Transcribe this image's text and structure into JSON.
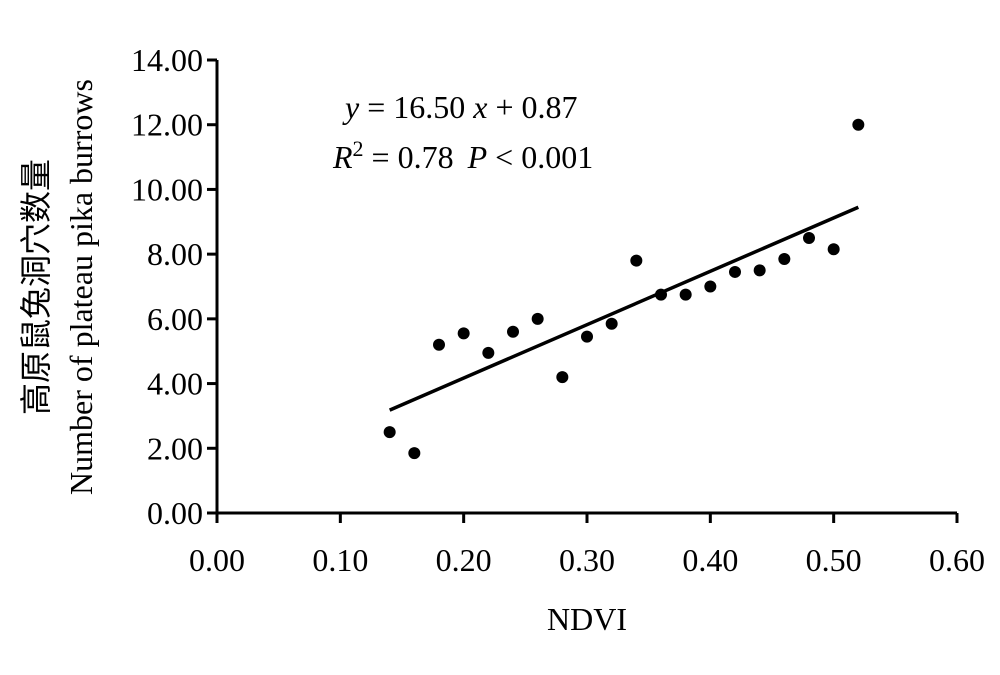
{
  "chart_data": {
    "type": "scatter",
    "xlabel": "NDVI",
    "ylabel_cn": "高原鼠兔洞穴数量",
    "ylabel_en": "Number of plateau pika burrows",
    "xlim": [
      0,
      0.6
    ],
    "ylim": [
      0,
      14
    ],
    "x_ticks": [
      "0.00",
      "0.10",
      "0.20",
      "0.30",
      "0.40",
      "0.50",
      "0.60"
    ],
    "y_ticks": [
      "0.00",
      "2.00",
      "4.00",
      "6.00",
      "8.00",
      "10.00",
      "12.00",
      "14.00"
    ],
    "grid": false,
    "points": [
      {
        "x": 0.14,
        "y": 2.5
      },
      {
        "x": 0.16,
        "y": 1.85
      },
      {
        "x": 0.18,
        "y": 5.2
      },
      {
        "x": 0.2,
        "y": 5.55
      },
      {
        "x": 0.22,
        "y": 4.95
      },
      {
        "x": 0.24,
        "y": 5.6
      },
      {
        "x": 0.26,
        "y": 6.0
      },
      {
        "x": 0.28,
        "y": 4.2
      },
      {
        "x": 0.3,
        "y": 5.45
      },
      {
        "x": 0.32,
        "y": 5.85
      },
      {
        "x": 0.34,
        "y": 7.8
      },
      {
        "x": 0.36,
        "y": 6.75
      },
      {
        "x": 0.38,
        "y": 6.75
      },
      {
        "x": 0.4,
        "y": 7.0
      },
      {
        "x": 0.42,
        "y": 7.45
      },
      {
        "x": 0.44,
        "y": 7.5
      },
      {
        "x": 0.46,
        "y": 7.85
      },
      {
        "x": 0.48,
        "y": 8.5
      },
      {
        "x": 0.5,
        "y": 8.15
      },
      {
        "x": 0.52,
        "y": 12.0
      }
    ],
    "trendline": {
      "slope": 16.5,
      "intercept": 0.87,
      "x_range": [
        0.14,
        0.52
      ]
    },
    "annotation": {
      "eq_y": "y",
      "eq_body": " = 16.50",
      "eq_x": "x",
      "eq_tail": " + 0.87",
      "r2_r": "R",
      "r2_sup": "2",
      "r2_body": " = 0.78 ",
      "p_p": "P",
      "p_body": " < 0.001"
    }
  }
}
